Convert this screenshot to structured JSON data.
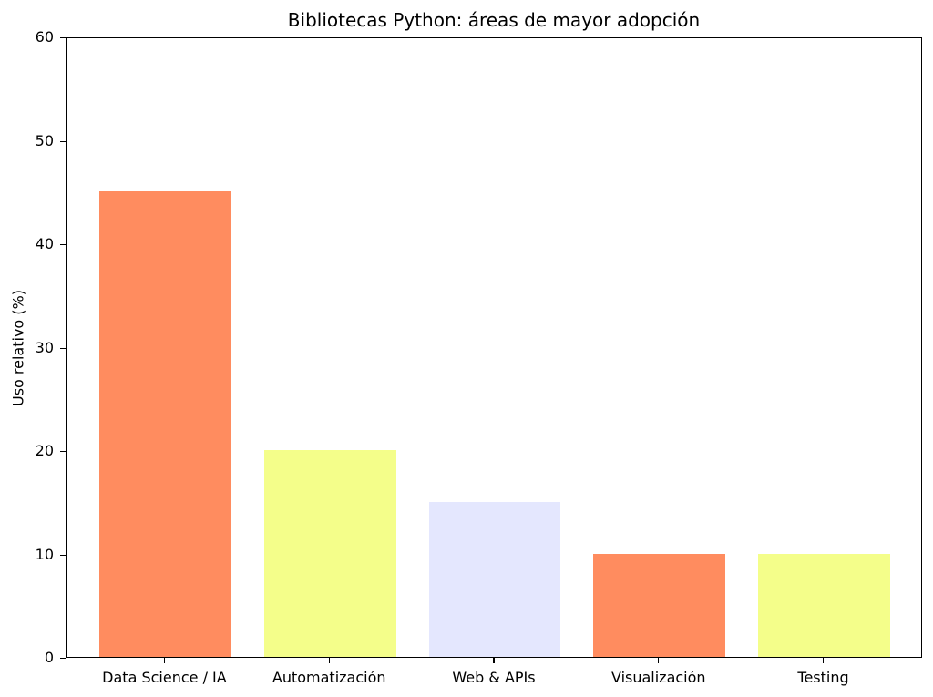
{
  "chart_data": {
    "type": "bar",
    "title": "Bibliotecas Python: áreas de mayor adopción",
    "xlabel": "",
    "ylabel": "Uso relativo (%)",
    "categories": [
      "Data Science / IA",
      "Automatización",
      "Web & APIs",
      "Visualización",
      "Testing"
    ],
    "values": [
      45,
      20,
      15,
      10,
      10
    ],
    "colors": [
      "#ff8c5f",
      "#f4fe8a",
      "#e4e7fe",
      "#ff8c5f",
      "#f4fe8a"
    ],
    "ylim": [
      0,
      60
    ],
    "yticks": [
      "0",
      "10",
      "20",
      "30",
      "40",
      "50",
      "60"
    ],
    "grid": false,
    "legend": null
  }
}
